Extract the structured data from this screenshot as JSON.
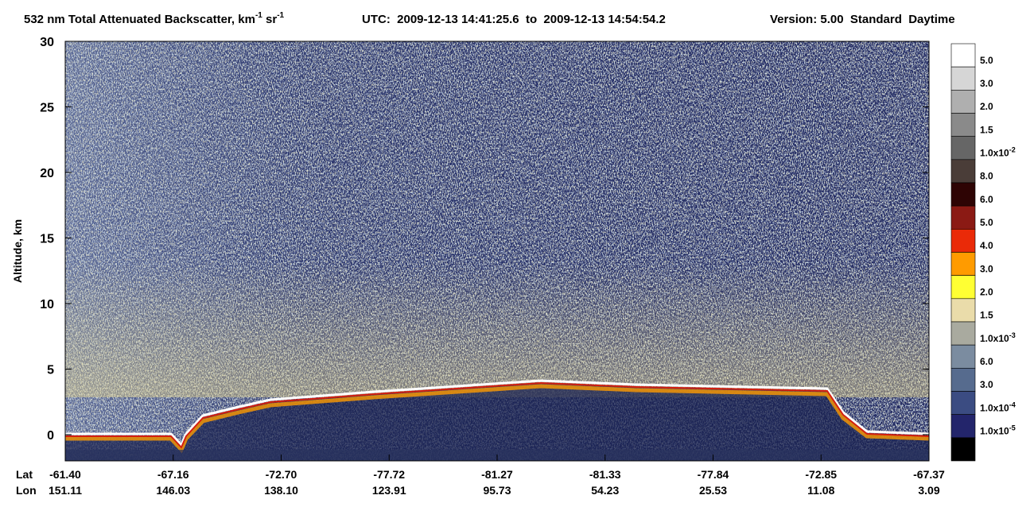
{
  "chart_data": {
    "type": "curtain",
    "title": [
      "532 nm Total Attenuated Backscatter, km",
      "-1",
      " sr",
      "-1"
    ],
    "time_range": "UTC:  2009-12-13 14:41:25.6  to  2009-12-13 14:54:54.2",
    "version": "Version: 5.00  Standard  Daytime",
    "ylabel": "Altitude, km",
    "ylim": [
      -2,
      30
    ],
    "yticks": [
      0,
      5,
      10,
      15,
      20,
      25,
      30
    ],
    "x_rows": [
      "Lat",
      "Lon"
    ],
    "lat": [
      "-61.40",
      "-67.16",
      "-72.70",
      "-77.72",
      "-81.27",
      "-81.33",
      "-77.84",
      "-72.85",
      "-67.37"
    ],
    "lon": [
      "151.11",
      "146.03",
      "138.10",
      "123.91",
      "95.73",
      "54.23",
      "25.53",
      "11.08",
      "3.09"
    ],
    "colorscale": [
      {
        "label": "5.0",
        "color": "#ffffff"
      },
      {
        "label": "3.0",
        "color": "#d6d6d6"
      },
      {
        "label": "2.0",
        "color": "#afafaf"
      },
      {
        "label": "1.5",
        "color": "#8a8a8a"
      },
      {
        "label": "1.0x10",
        "exp": "-2",
        "color": "#666666"
      },
      {
        "label": "8.0",
        "color": "#4a3d38"
      },
      {
        "label": "6.0",
        "color": "#2e0404"
      },
      {
        "label": "5.0",
        "color": "#8b1a14"
      },
      {
        "label": "4.0",
        "color": "#ea2a08"
      },
      {
        "label": "3.0",
        "color": "#ff9b00"
      },
      {
        "label": "2.0",
        "color": "#ffff33"
      },
      {
        "label": "1.5",
        "color": "#eadcaa"
      },
      {
        "label": "1.0x10",
        "exp": "-3",
        "color": "#a9aa9f"
      },
      {
        "label": "6.0",
        "color": "#7b8ca0"
      },
      {
        "label": "3.0",
        "color": "#566b8e"
      },
      {
        "label": "1.0x10",
        "exp": "-4",
        "color": "#3b4c82"
      },
      {
        "label": "1.0x10",
        "exp": "-5",
        "color": "#23256b"
      },
      {
        "color": "#000000"
      }
    ]
  }
}
